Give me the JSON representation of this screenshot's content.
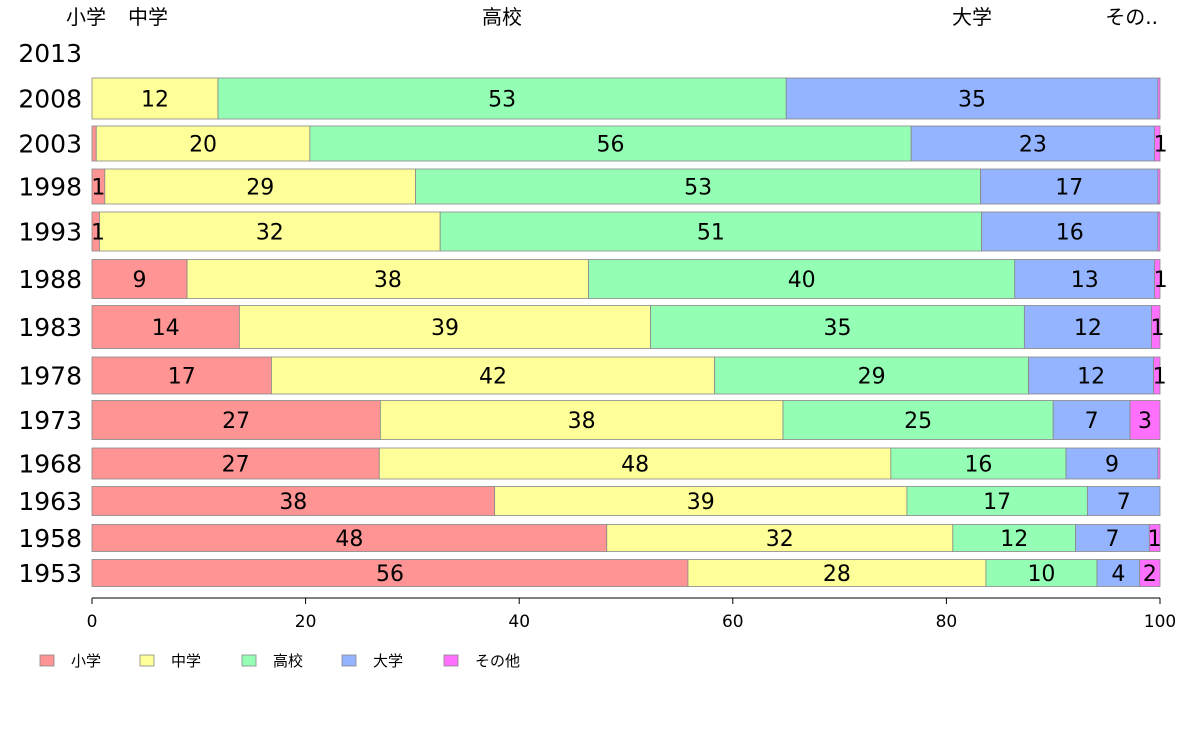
{
  "chart_data": {
    "type": "bar",
    "orientation": "horizontal",
    "stacked": true,
    "categories": [
      "2013",
      "2008",
      "2003",
      "1998",
      "1993",
      "1988",
      "1983",
      "1978",
      "1973",
      "1968",
      "1963",
      "1958",
      "1953"
    ],
    "series": [
      {
        "name": "小学",
        "color": "#ff9494",
        "values": [
          null,
          0,
          0.4,
          1.2,
          0.7,
          8.9,
          13.8,
          16.8,
          27.0,
          26.9,
          37.7,
          48.2,
          55.8
        ],
        "labels": [
          "",
          "",
          "",
          "1",
          "1",
          "9",
          "14",
          "17",
          "27",
          "27",
          "38",
          "48",
          "56"
        ]
      },
      {
        "name": "中学",
        "color": "#ffff99",
        "values": [
          null,
          11.8,
          20.0,
          29.1,
          31.9,
          37.6,
          38.5,
          41.5,
          37.7,
          47.9,
          38.6,
          32.4,
          27.9
        ],
        "labels": [
          "",
          "12",
          "20",
          "29",
          "32",
          "38",
          "39",
          "42",
          "38",
          "48",
          "39",
          "32",
          "28"
        ]
      },
      {
        "name": "高校",
        "color": "#94ffb4",
        "values": [
          null,
          53.2,
          56.3,
          52.9,
          50.7,
          39.9,
          35.0,
          29.4,
          25.3,
          16.4,
          16.9,
          11.5,
          10.4
        ],
        "labels": [
          "",
          "53",
          "56",
          "53",
          "51",
          "40",
          "35",
          "29",
          "25",
          "16",
          "17",
          "12",
          "10"
        ]
      },
      {
        "name": "大学",
        "color": "#94b4ff",
        "values": [
          null,
          34.8,
          22.8,
          16.6,
          16.5,
          13.1,
          11.9,
          11.7,
          7.2,
          8.6,
          6.8,
          6.9,
          4.0
        ],
        "labels": [
          "",
          "35",
          "23",
          "17",
          "16",
          "13",
          "12",
          "12",
          "7",
          "9",
          "7",
          "7",
          "4"
        ]
      },
      {
        "name": "その他",
        "color": "#ff70ff",
        "values": [
          null,
          0.2,
          0.5,
          0.2,
          0.2,
          0.5,
          0.8,
          0.6,
          2.8,
          0.2,
          0,
          1.0,
          1.9
        ],
        "labels": [
          "",
          "",
          "1",
          "",
          "",
          "1",
          "1",
          "1",
          "3",
          "",
          "",
          "1",
          "2"
        ]
      }
    ],
    "top_labels": [
      "小学",
      "中学",
      "高校",
      "大学",
      "その.."
    ],
    "xlim": [
      0,
      100
    ],
    "xticks": [
      "0",
      "20",
      "40",
      "60",
      "80",
      "100"
    ],
    "grid": false,
    "legend": {
      "position": "bottom-left",
      "items": [
        "小学",
        "中学",
        "高校",
        "大学",
        "その他"
      ]
    }
  }
}
